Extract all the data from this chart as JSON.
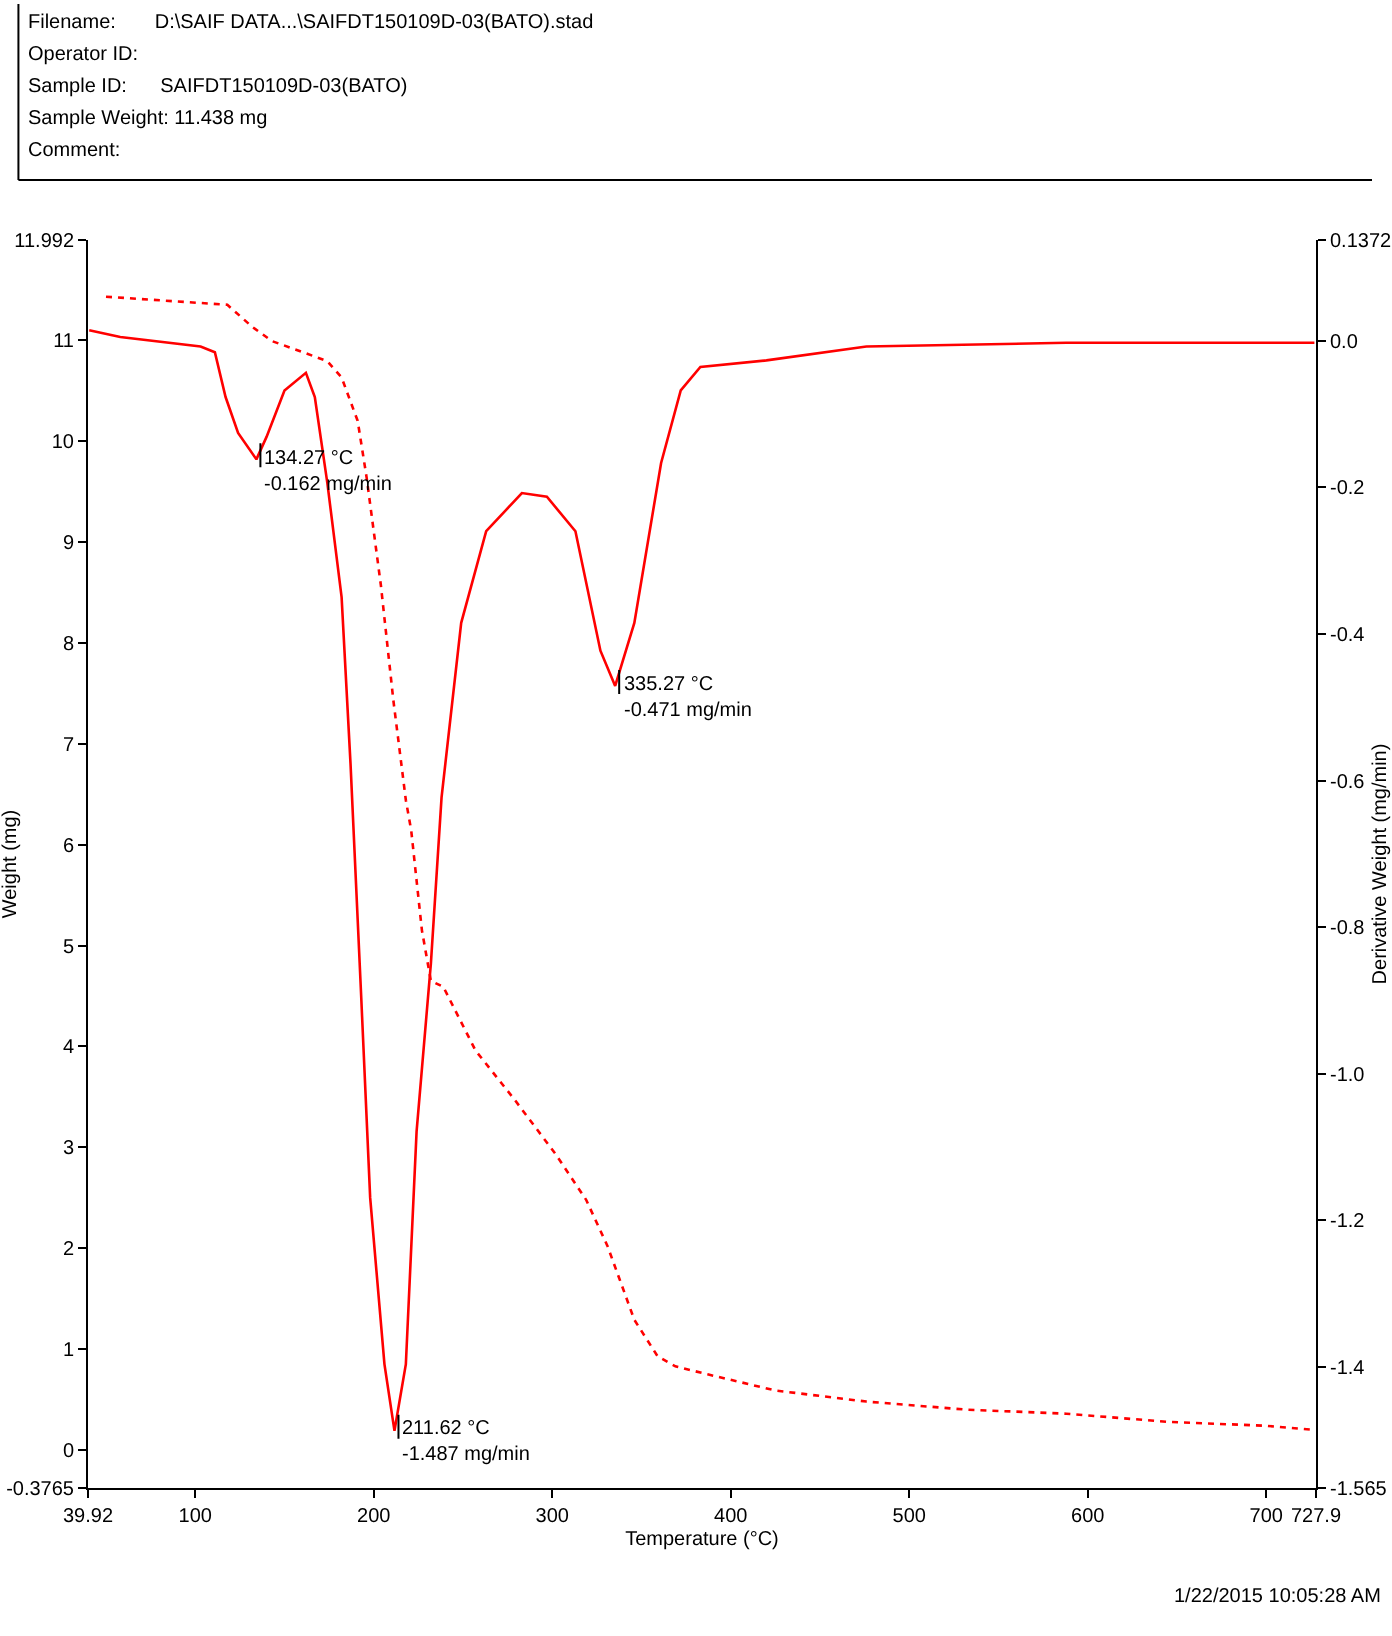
{
  "chart_data": {
    "type": "line",
    "xlabel": "Temperature (°C)",
    "ylabel": "Weight (mg)",
    "y2label": "Derivative Weight (mg/min)",
    "annotations": [
      "Filename:       D:\\SAIF DATA...\\SAIFDT150109D-03(BATO).stad",
      "Operator ID:",
      "Sample ID:      SAIFDT150109D-03(BATO)",
      "Sample Weight: 11.438 mg",
      "Comment:",
      "134.27 °C\n-0.162 mg/min",
      "211.62 °C\n-1.487 mg/min",
      "335.27 °C\n-0.471 mg/min",
      "1/22/2015 10:05:28 AM"
    ],
    "series": [
      {
        "color": "#ff0000",
        "line_style": "dotted",
        "x": [
          50,
          118,
          132,
          143,
          162,
          174,
          182,
          191,
          196,
          204,
          211,
          218,
          221,
          227,
          232,
          239,
          257,
          279,
          302,
          319,
          331,
          346,
          359,
          369,
          387,
          425,
          476,
          532,
          588,
          644,
          700,
          727
        ],
        "values": [
          11.43,
          11.35,
          11.13,
          10.99,
          10.87,
          10.79,
          10.63,
          10.2,
          9.64,
          8.57,
          7.43,
          6.44,
          6.14,
          5.15,
          4.65,
          4.59,
          3.96,
          3.47,
          2.93,
          2.48,
          2.02,
          1.29,
          0.93,
          0.83,
          0.75,
          0.59,
          0.48,
          0.4,
          0.36,
          0.28,
          0.24,
          0.2
        ]
      },
      {
        "color": "#ff0000",
        "line_style": "solid",
        "axis": "y2",
        "x": [
          40.6,
          58,
          103,
          111,
          117,
          124,
          134.27,
          140,
          150,
          162,
          167,
          174,
          182,
          187,
          193,
          198,
          206,
          211.62,
          218,
          224,
          232,
          238,
          249,
          263,
          283,
          297,
          313,
          327,
          335.27,
          346,
          361,
          372,
          383,
          420,
          476,
          588,
          727
        ],
        "values": [
          0.014,
          0.005,
          -0.008,
          -0.016,
          -0.077,
          -0.126,
          -0.162,
          -0.131,
          -0.068,
          -0.044,
          -0.077,
          -0.194,
          -0.35,
          -0.577,
          -0.896,
          -1.169,
          -1.396,
          -1.487,
          -1.396,
          -1.079,
          -0.85,
          -0.623,
          -0.385,
          -0.26,
          -0.208,
          -0.213,
          -0.26,
          -0.423,
          -0.471,
          -0.385,
          -0.167,
          -0.068,
          -0.036,
          -0.027,
          -0.008,
          -0.003,
          -0.003
        ]
      }
    ],
    "xlim": [
      39.92,
      727.9
    ],
    "xticks": [
      39.92,
      100,
      200,
      300,
      400,
      500,
      600,
      700,
      727.9
    ],
    "ylim": [
      -0.3765,
      11.992
    ],
    "yticks": [
      -0.3765,
      0,
      1,
      2,
      3,
      4,
      5,
      6,
      7,
      8,
      9,
      10,
      11,
      11.992
    ],
    "y2lim": [
      -1.565,
      0.1372
    ],
    "y2ticks": [
      -1.565,
      -1.4,
      -1.2,
      {
        "value": -1.0,
        "label": "-1.0"
      },
      -0.8,
      -0.6,
      -0.4,
      -0.2,
      {
        "value": 0,
        "label": "0.0"
      },
      0.1372
    ],
    "marker": "none"
  }
}
